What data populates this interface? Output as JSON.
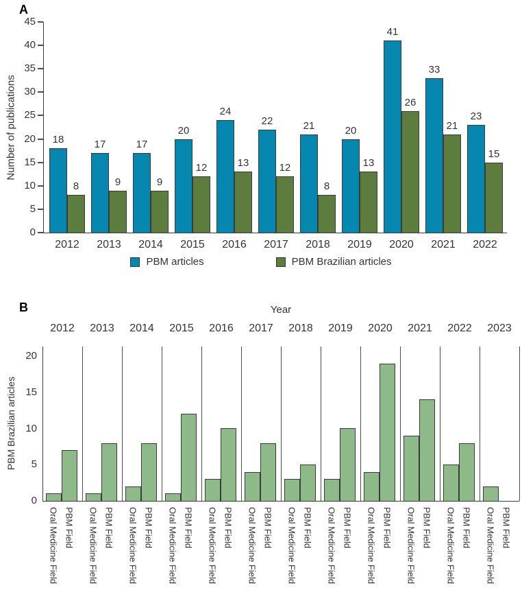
{
  "figure": {
    "panel_a_label": "A",
    "panel_b_label": "B",
    "colors": {
      "pbm_blue": "#0587b0",
      "pbm_brazilian_green": "#5d7d3e",
      "light_green": "#8eba8a",
      "axis": "#3a3a3a",
      "text": "#333333"
    }
  },
  "chart_data": [
    {
      "id": "A",
      "type": "bar",
      "panel_label": "A",
      "title": "",
      "xlabel": "",
      "ylabel": "Number of publications",
      "ylim": [
        0,
        45
      ],
      "yticks": [
        0,
        5,
        10,
        15,
        20,
        25,
        30,
        35,
        40,
        45
      ],
      "grid": false,
      "value_labels": true,
      "legend_position": "bottom",
      "categories": [
        "2012",
        "2013",
        "2014",
        "2015",
        "2016",
        "2017",
        "2018",
        "2019",
        "2020",
        "2021",
        "2022"
      ],
      "series": [
        {
          "name": "PBM articles",
          "color": "#0587b0",
          "values": [
            18,
            17,
            17,
            20,
            24,
            22,
            21,
            20,
            41,
            33,
            23
          ]
        },
        {
          "name": "PBM Brazilian articles",
          "color": "#5d7d3e",
          "values": [
            8,
            9,
            9,
            12,
            13,
            12,
            8,
            13,
            26,
            21,
            15
          ]
        }
      ]
    },
    {
      "id": "B",
      "type": "bar",
      "panel_label": "B",
      "title": "",
      "xlabel_top": "Year",
      "ylabel": "PBM Brazilian articles",
      "ylim": [
        0,
        20
      ],
      "yticks": [
        0,
        5,
        10,
        15,
        20
      ],
      "grid": false,
      "value_labels": false,
      "bar_color": "#8eba8a",
      "categories": [
        "2012",
        "2013",
        "2014",
        "2015",
        "2016",
        "2017",
        "2018",
        "2019",
        "2020",
        "2021",
        "2022",
        "2023"
      ],
      "bar_labels": [
        "Oral Medicine Field",
        "PBM Field"
      ],
      "series": [
        {
          "name": "Oral Medicine Field",
          "color": "#8eba8a",
          "values": [
            1,
            1,
            2,
            1,
            3,
            4,
            3,
            3,
            4,
            9,
            5,
            2
          ]
        },
        {
          "name": "PBM Field",
          "color": "#8eba8a",
          "values": [
            7,
            8,
            8,
            12,
            10,
            8,
            5,
            10,
            19,
            14,
            8,
            0
          ]
        }
      ]
    }
  ]
}
